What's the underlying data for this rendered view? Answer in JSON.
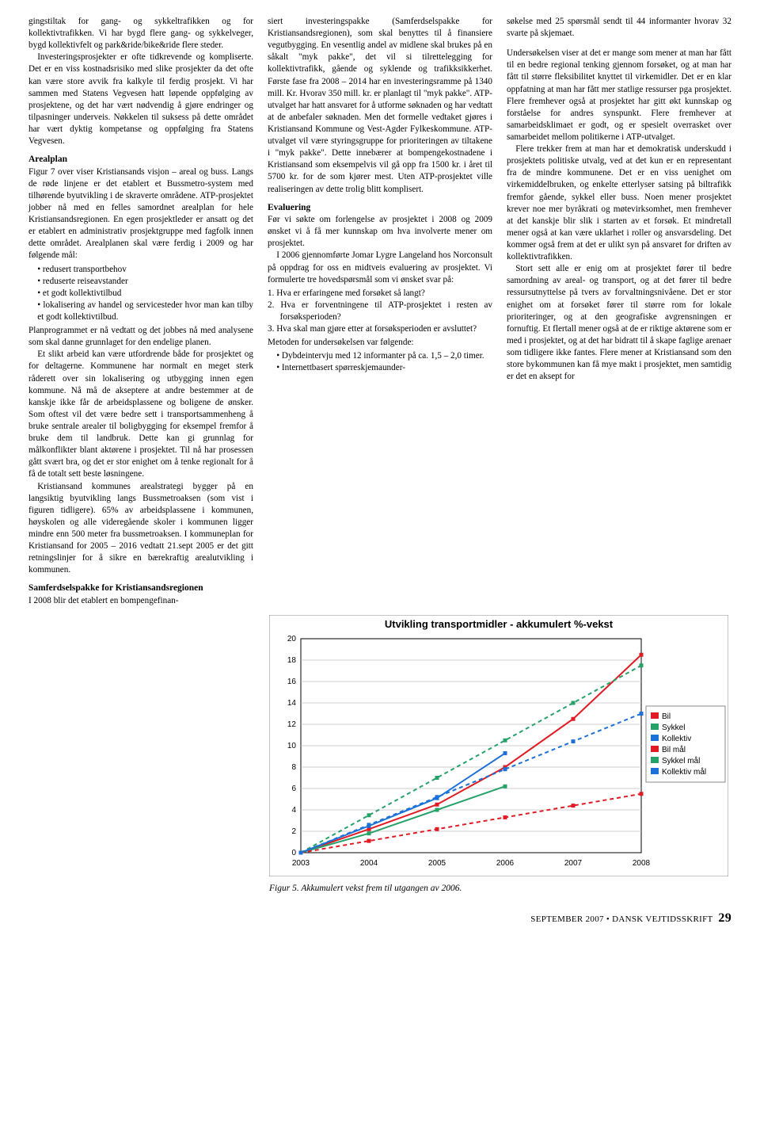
{
  "col1": {
    "p1": "gingstiltak for gang- og sykkeltrafikken og for kollektivtrafikken. Vi har bygd flere gang- og sykkelveger, bygd kollektivfelt og park&ride/bike&ride flere steder.",
    "p2": "Investeringsprosjekter er ofte tidkrevende og kompliserte. Det er en viss kostnadsrisiko med slike prosjekter da det ofte kan være store avvik fra kalkyle til ferdig prosjekt. Vi har sammen med Statens Vegvesen hatt løpende oppfølging av prosjektene, og det har vært nødvendig å gjøre endringer og tilpasninger underveis. Nøkkelen til suksess på dette området har vært dyktig kompetanse og oppfølging fra Statens Vegvesen.",
    "h_areal": "Arealplan",
    "p3": "Figur 7 over viser Kristiansands visjon – areal og buss. Langs de røde linjene er det etablert et Bussmetro-system med tilhørende byutvikling i de skraverte områdene. ATP-prosjektet jobber nå med en felles samordnet arealplan for hele Kristiansandsregionen. En egen prosjektleder er ansatt og det er etablert en administrativ prosjektgruppe med fagfolk innen dette området. Arealplanen skal være ferdig i 2009 og har følgende mål:",
    "li1": "redusert transportbehov",
    "li2": "reduserte reiseavstander",
    "li3": "et godt kollektivtilbud",
    "li4": "lokalisering av handel og servicesteder hvor man kan tilby et godt kollektivtilbud.",
    "p4": "Planprogrammet er nå vedtatt og det jobbes nå med analysene som skal danne grunnlaget for den endelige planen.",
    "p5": "Et slikt arbeid kan være utfordrende både for prosjektet og for deltagerne. Kommunene har normalt en meget sterk råderett over sin lokalisering og utbygging innen egen kommune. Nå må de akseptere at andre bestemmer at de kanskje ikke får de arbeidsplassene og boligene de ønsker. Som oftest vil det være bedre sett i transportsammenheng å bruke sentrale arealer til boligbygging for eksempel fremfor å bruke dem til landbruk. Dette kan gi grunnlag for målkonflikter blant aktørene i prosjektet. Til nå har prosessen gått svært bra, og det er stor enighet om å tenke regionalt for å få de totalt sett beste løsningene.",
    "p6": "Kristiansand kommunes arealstrategi bygger på en langsiktig byutvikling langs Bussmetroaksen (som vist i figuren tidligere). 65% av arbeidsplassene i kommunen, høyskolen og alle videregående skoler i kommunen ligger mindre enn 500 meter fra bussmetroaksen. I kommuneplan for Kristiansand for 2005 – 2016 vedtatt 21.sept 2005 er det gitt retningslinjer for å sikre en bærekraftig arealutvikling i kommunen.",
    "h_samf": "Samferdselspakke for Kristiansandsregionen",
    "p7": "I 2008 blir det etablert en bompengefinan-"
  },
  "col2": {
    "p1": "siert investeringspakke (Samferdselspakke for Kristiansandsregionen), som skal benyttes til å finansiere vegutbygging. En vesentlig andel av midlene skal brukes på en såkalt \"myk pakke\", det vil si tilrettelegging for kollektivtrafikk, gående og syklende og trafikksikkerhet. Første fase fra 2008 – 2014 har en investeringsramme på 1340 mill. Kr. Hvorav 350 mill. kr. er planlagt til \"myk pakke\". ATP-utvalget har hatt ansvaret for å utforme søknaden og har vedtatt at de anbefaler søknaden. Men det formelle vedtaket gjøres i Kristiansand Kommune og Vest-Agder Fylkeskommune. ATP-utvalget vil være styringsgruppe for prioriteringen av tiltakene i \"myk pakke\". Dette innebærer at bompengekostnadene i Kristiansand som eksempelvis vil gå opp fra 1500 kr. i året til 5700 kr. for de som kjører mest. Uten ATP-prosjektet ville realiseringen av dette trolig blitt komplisert.",
    "h_eval": "Evaluering",
    "p2": "Før vi søkte om forlengelse av prosjektet i 2008 og 2009 ønsket vi å få mer kunnskap om hva involverte mener om prosjektet.",
    "p3": "I 2006 gjennomførte Jomar Lygre Langeland hos Norconsult på oppdrag for oss en midtveis evaluering av prosjektet. Vi formulerte tre hovedspørsmål som vi ønsket svar på:",
    "li1": "1.  Hva er erfaringene med forsøket så langt?",
    "li2": "2.  Hva er forventningene til ATP-prosjektet i resten av forsøksperioden?",
    "li3": "3.  Hva skal man gjøre etter at forsøksperioden er avsluttet?",
    "p4": "Metoden for undersøkelsen var følgende:",
    "m1": "Dybdeintervju med 12 informanter på ca. 1,5 – 2,0 timer.",
    "m2": "Internettbasert spørreskjemaunder-"
  },
  "col3": {
    "p1": "søkelse med 25 spørsmål sendt til 44 informanter hvorav 32 svarte på skjemaet.",
    "p2": "Undersøkelsen viser at det er mange som mener at man har fått til en bedre regional tenking gjennom forsøket, og at man har fått til større fleksibilitet knyttet til virkemidler. Det er en klar oppfatning at man har fått mer statlige ressurser pga prosjektet. Flere fremhever også at prosjektet har gitt økt kunnskap og forståelse for andres synspunkt. Flere fremhever at samarbeidsklimaet er godt, og er spesielt overrasket over samarbeidet mellom politikerne i ATP-utvalget.",
    "p3": "Flere trekker frem at man har et demokratisk underskudd i prosjektets politiske utvalg, ved at det kun er en representant fra de mindre kommunene. Det er en viss uenighet om virkemiddelbruken, og enkelte etterlyser satsing på biltrafikk fremfor gående, sykkel eller buss. Noen mener prosjektet krever noe mer byråkrati og møtevirksomhet, men fremhever at det kanskje blir slik i starten av et forsøk. Et mindretall mener også at kan være uklarhet i roller og ansvarsdeling. Det kommer også frem at det er ulikt syn på ansvaret for driften av kollektivtrafikken.",
    "p4": "Stort sett alle er enig om at prosjektet fører til bedre samordning av areal- og transport, og at det fører til bedre ressursutnyttelse på tvers av forvaltningsnivåene. Det er stor enighet om at forsøket fører til større rom for lokale prioriteringer, og at den geografiske avgrensningen er fornuftig. Et flertall mener også at de er riktige aktørene som er med i prosjektet, og at det har bidratt til å skape faglige arenaer som tidligere ikke fantes. Flere mener at Kristiansand som den store bykommunen kan få mye makt i prosjektet, men samtidig er det en aksept for"
  },
  "chart": {
    "title": "Utvikling transportmidler - akkumulert %-vekst",
    "years": [
      2003,
      2004,
      2005,
      2006,
      2007,
      2008
    ],
    "ylim": [
      0,
      20
    ],
    "ytick_step": 2,
    "series": [
      {
        "name": "Bil",
        "color": "#e01b24",
        "dash": "0",
        "values": [
          0,
          2.2,
          4.5,
          8.0,
          12.5,
          18.5
        ]
      },
      {
        "name": "Sykkel",
        "color": "#26a269",
        "dash": "0",
        "values": [
          0,
          1.8,
          4.0,
          6.2,
          null,
          null
        ]
      },
      {
        "name": "Kollektiv",
        "color": "#1c71d8",
        "dash": "0",
        "values": [
          0,
          2.5,
          5.1,
          9.3,
          null,
          null
        ]
      },
      {
        "name": "Bil mål",
        "color": "#e01b24",
        "dash": "5,4",
        "values": [
          0,
          1.1,
          2.2,
          3.3,
          4.4,
          5.5
        ]
      },
      {
        "name": "Sykkel mål",
        "color": "#26a269",
        "dash": "5,4",
        "values": [
          0,
          3.5,
          7.0,
          10.5,
          14.0,
          17.5
        ]
      },
      {
        "name": "Kollektiv mål",
        "color": "#1c71d8",
        "dash": "5,4",
        "values": [
          0,
          2.6,
          5.2,
          7.8,
          10.4,
          13.0
        ]
      }
    ],
    "caption": "Figur 5. Akkumulert vekst frem til utgangen av 2006.",
    "legend_swatch_colors": [
      "#e01b24",
      "#26a269",
      "#1c71d8",
      "#e01b24",
      "#26a269",
      "#1c71d8"
    ],
    "legend_labels": [
      "Bil",
      "Sykkel",
      "Kollektiv",
      "Bil mål",
      "Sykkel mål",
      "Kollektiv mål"
    ],
    "plot_bg": "#ffffff",
    "grid_color": "#bfbfbf",
    "axis_color": "#000000",
    "title_fontsize": 13,
    "tick_fontsize": 10,
    "legend_fontsize": 10
  },
  "footer": {
    "left": "SEPTEMBER 2007",
    "dot": "•",
    "right": "DANSK VEJTIDSSKRIFT",
    "page": "29"
  }
}
